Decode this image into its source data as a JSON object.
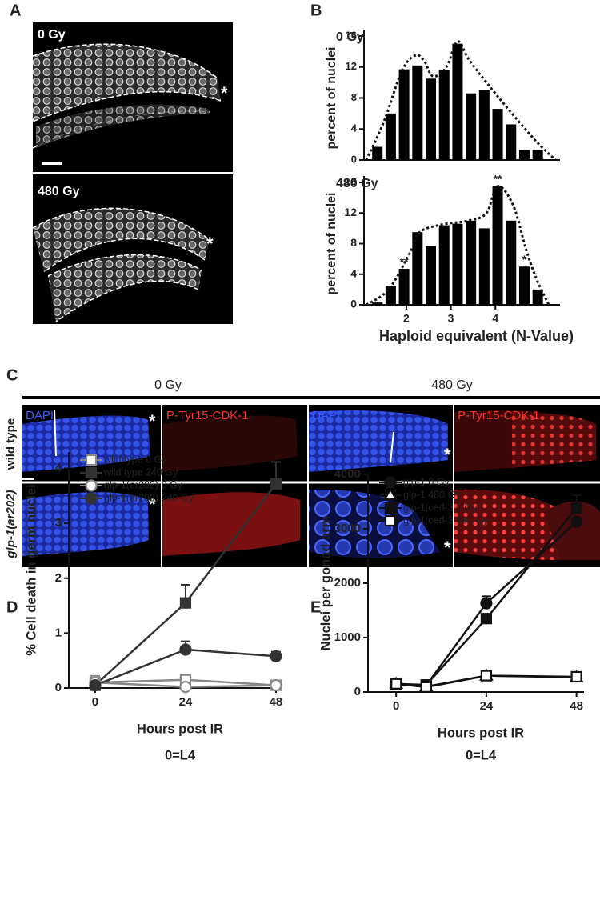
{
  "panel_labels": [
    "A",
    "B",
    "C",
    "D",
    "E"
  ],
  "panel_a": {
    "labels": [
      "0 Gy",
      "480 Gy"
    ],
    "asterisks": [
      "*",
      "*"
    ]
  },
  "panel_c": {
    "columns": [
      "0 Gy",
      "480 Gy"
    ],
    "rows": [
      "wild type",
      "glp-1(ar202)"
    ],
    "channels": [
      "DAPI",
      "P-Tyr15-CDK-1",
      "DAPI",
      "P-Tyr15-CDK-1"
    ],
    "asterisks": [
      "*",
      "*",
      "*",
      "*"
    ]
  },
  "chart_data": [
    {
      "type": "bar",
      "label": "0 Gy",
      "ylabel": "percent of nuclei",
      "color": "#000",
      "x": [
        1.35,
        1.65,
        1.95,
        2.25,
        2.55,
        2.85,
        3.15,
        3.45,
        3.75,
        4.05,
        4.35,
        4.65,
        4.95
      ],
      "values": [
        1.7,
        6,
        11.7,
        12.2,
        10.5,
        11.6,
        15,
        8.6,
        9,
        6.6,
        4.6,
        1.3,
        1.3
      ],
      "envelope": {
        "x": [
          1.1,
          1.5,
          1.9,
          2.2,
          2.4,
          2.6,
          2.9,
          3.15,
          3.4,
          3.8,
          4.3,
          4.9,
          5.35
        ],
        "values": [
          0,
          5,
          11.5,
          13.5,
          12.8,
          10.8,
          12,
          15.3,
          13,
          10,
          6.5,
          2.5,
          0
        ]
      },
      "xlim": [
        1.05,
        5.45
      ],
      "ylim": [
        0,
        16
      ],
      "yticks": [
        0,
        4,
        8,
        12,
        16
      ]
    },
    {
      "type": "bar",
      "label": "480 Gy",
      "ylabel": "percent of nuclei",
      "xlabel": "Haploid equivalent (N-Value)",
      "color": "#000",
      "x": [
        1.35,
        1.65,
        1.95,
        2.25,
        2.55,
        2.85,
        3.15,
        3.45,
        3.75,
        4.05,
        4.35,
        4.65,
        4.95
      ],
      "values": [
        0.3,
        2.5,
        4.7,
        9.5,
        7.7,
        10.4,
        10.6,
        11,
        10,
        15.5,
        11,
        5,
        2
      ],
      "envelope": {
        "x": [
          1.1,
          1.6,
          2.1,
          2.3,
          2.8,
          3.4,
          3.8,
          4.05,
          4.4,
          4.7,
          4.95,
          5.2
        ],
        "values": [
          0,
          2,
          7,
          9.5,
          10.5,
          11,
          12,
          15.5,
          13,
          7,
          3,
          0
        ]
      },
      "annotations": [
        {
          "x": 1.95,
          "text": "**"
        },
        {
          "x": 4.05,
          "text": "**"
        },
        {
          "x": 4.65,
          "text": "*"
        }
      ],
      "xlim": [
        1.05,
        5.45
      ],
      "ylim": [
        0,
        16
      ],
      "xticks": [
        2,
        3,
        4
      ],
      "yticks": [
        0,
        4,
        8,
        12,
        16
      ]
    },
    {
      "type": "line",
      "ylabel": "% Cell death in germ nuclei",
      "xlabel": "Hours post IR",
      "note": "0=L4",
      "legend": "upper left",
      "x": [
        0,
        24,
        48
      ],
      "xlim": [
        -7,
        49.5
      ],
      "xticks": [
        0,
        24,
        48
      ],
      "ylim": [
        0,
        4.3
      ],
      "yticks": [
        0,
        1,
        2,
        3,
        4
      ],
      "series": [
        {
          "name": "wild type 0 Gy",
          "color": "#888",
          "marker": "square",
          "filled": false,
          "values": [
            0.1,
            0.15,
            0.05
          ],
          "errors": [
            0.12,
            null,
            null
          ]
        },
        {
          "name": "wild type 240 Gy",
          "color": "#333",
          "marker": "square",
          "filled": true,
          "values": [
            0.05,
            1.55,
            3.72
          ],
          "errors": [
            null,
            0.33,
            0.4
          ]
        },
        {
          "name": "glp-1(ar202) 0 Gy",
          "color": "#888",
          "marker": "circle",
          "filled": false,
          "values": [
            0.1,
            0.02,
            0.05
          ],
          "errors": [
            null,
            null,
            null
          ]
        },
        {
          "name": "glp-1(ar202) 240 Gy",
          "color": "#333",
          "marker": "circle",
          "filled": true,
          "values": [
            0.05,
            0.7,
            0.58
          ],
          "errors": [
            null,
            0.15,
            0.08
          ]
        }
      ]
    },
    {
      "type": "line",
      "ylabel": "Nuclei per gonad arm",
      "xlabel": "Hours post IR",
      "note": "0=L4",
      "legend": "upper left",
      "x": [
        0,
        8,
        24,
        48
      ],
      "xlim": [
        -7.5,
        50
      ],
      "xticks": [
        0,
        24,
        48
      ],
      "ylim": [
        0,
        4000
      ],
      "yticks": [
        0,
        1000,
        2000,
        3000,
        4000
      ],
      "series": [
        {
          "name": "glp-1 0 Gy",
          "color": "#111",
          "marker": "circle",
          "filled": true,
          "values": [
            150,
            120,
            1630,
            3130
          ],
          "errors": [
            null,
            null,
            130,
            null
          ]
        },
        {
          "name": "glp-1 480 Gy",
          "color": "#111",
          "marker": "triangle",
          "filled": false,
          "values": [
            150,
            100,
            300,
            270
          ],
          "errors": [
            null,
            null,
            null,
            null
          ]
        },
        {
          "name": "glp-1;ced-3 0 Gy",
          "color": "#111",
          "marker": "square",
          "filled": true,
          "values": [
            150,
            130,
            1350,
            3380
          ],
          "errors": [
            null,
            null,
            null,
            240
          ]
        },
        {
          "name": "glp-1;ced-3 480 Gy",
          "color": "#111",
          "marker": "square",
          "filled": false,
          "values": [
            150,
            90,
            300,
            280
          ],
          "errors": [
            null,
            null,
            null,
            null
          ]
        }
      ]
    }
  ]
}
